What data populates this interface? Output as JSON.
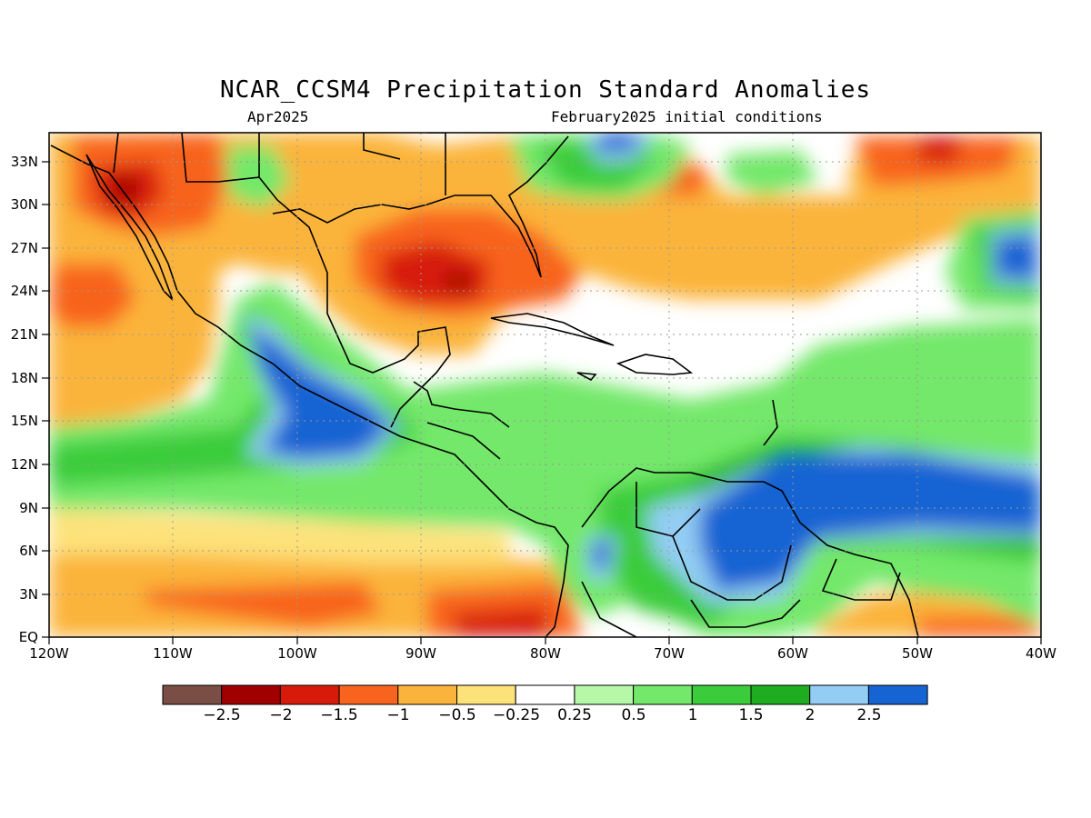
{
  "header": {
    "title": "NCAR_CCSM4 Precipitation Standard Anomalies",
    "valid_month": "Apr2025",
    "init_conditions": "February2025 initial conditions"
  },
  "map": {
    "lon_range": [
      -120,
      -40
    ],
    "lat_range": [
      0,
      35
    ],
    "lat_labels": [
      "EQ",
      "3N",
      "6N",
      "9N",
      "12N",
      "15N",
      "18N",
      "21N",
      "24N",
      "27N",
      "30N",
      "33N"
    ],
    "lon_labels": [
      "120W",
      "110W",
      "100W",
      "90W",
      "80W",
      "70W",
      "60W",
      "50W",
      "40W"
    ],
    "grid": "dotted"
  },
  "colorbar": {
    "labels": [
      "−2.5",
      "−2",
      "−1.5",
      "−1",
      "−0.5",
      "−0.25",
      "0.25",
      "0.5",
      "1",
      "1.5",
      "2",
      "2.5"
    ],
    "colors": [
      "#7a4e45",
      "#a10000",
      "#d71a0a",
      "#f8641e",
      "#fbb43b",
      "#fde27a",
      "#ffffff",
      "#b6f7a8",
      "#73e86a",
      "#3bcc3b",
      "#1ead20",
      "#93cdf4",
      "#1663d3"
    ]
  }
}
